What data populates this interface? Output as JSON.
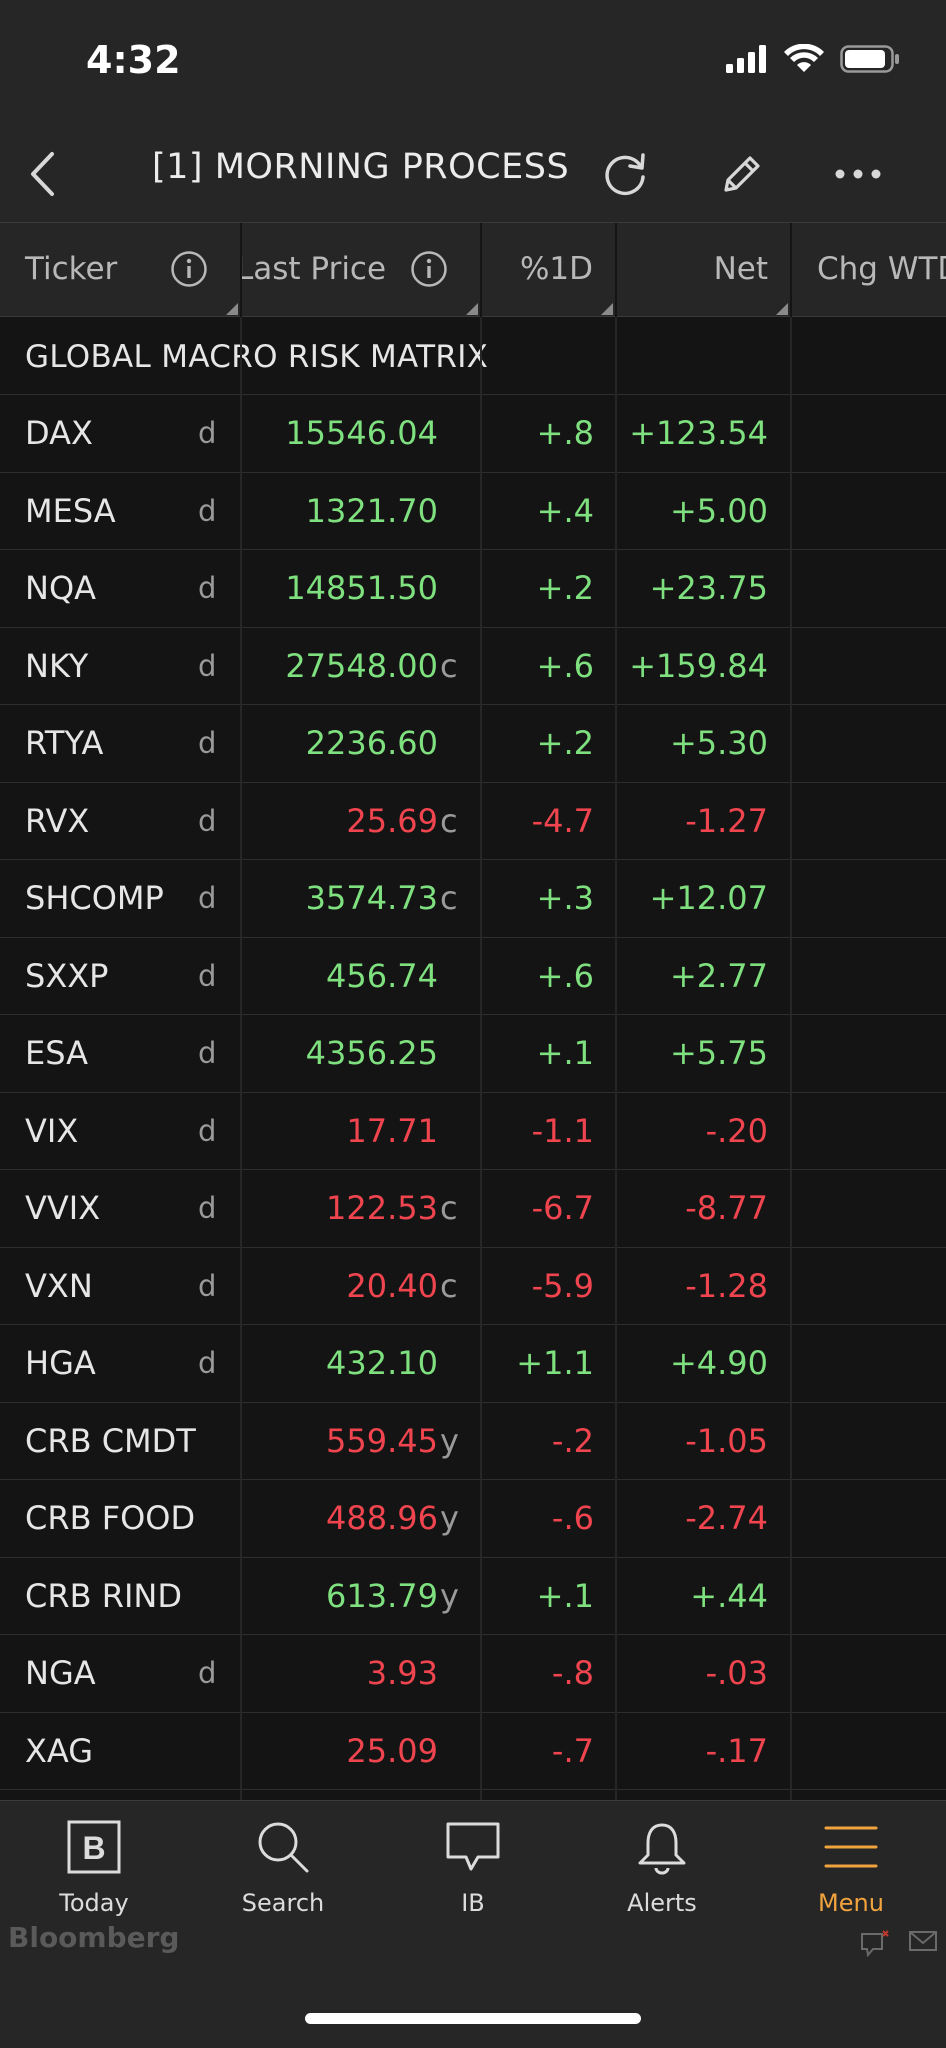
{
  "status_bar": {
    "time": "4:32"
  },
  "nav": {
    "title": "[1] MORNING PROCESS"
  },
  "columns": {
    "ticker": "Ticker",
    "last_price": "Last Price",
    "pct1d": "%1D",
    "net": "Net",
    "chg_wtd": "Chg WTD"
  },
  "section_title": "GLOBAL MACRO RISK MATRIX",
  "colors": {
    "up": "#7fe07f",
    "down": "#f0454f",
    "accent": "#f1a33d"
  },
  "rows": [
    {
      "ticker": "DAX",
      "src": "d",
      "last": "15546.04",
      "suffix": "",
      "pct": "+.8",
      "net": "+123.54",
      "dir": "up"
    },
    {
      "ticker": "MESA",
      "src": "d",
      "last": "1321.70",
      "suffix": "",
      "pct": "+.4",
      "net": "+5.00",
      "dir": "up"
    },
    {
      "ticker": "NQA",
      "src": "d",
      "last": "14851.50",
      "suffix": "",
      "pct": "+.2",
      "net": "+23.75",
      "dir": "up"
    },
    {
      "ticker": "NKY",
      "src": "d",
      "last": "27548.00",
      "suffix": "c",
      "pct": "+.6",
      "net": "+159.84",
      "dir": "up"
    },
    {
      "ticker": "RTYA",
      "src": "d",
      "last": "2236.60",
      "suffix": "",
      "pct": "+.2",
      "net": "+5.30",
      "dir": "up"
    },
    {
      "ticker": "RVX",
      "src": "d",
      "last": "25.69",
      "suffix": "c",
      "pct": "-4.7",
      "net": "-1.27",
      "dir": "down"
    },
    {
      "ticker": "SHCOMP",
      "src": "d",
      "last": "3574.73",
      "suffix": "c",
      "pct": "+.3",
      "net": "+12.07",
      "dir": "up"
    },
    {
      "ticker": "SXXP",
      "src": "d",
      "last": "456.74",
      "suffix": "",
      "pct": "+.6",
      "net": "+2.77",
      "dir": "up"
    },
    {
      "ticker": "ESA",
      "src": "d",
      "last": "4356.25",
      "suffix": "",
      "pct": "+.1",
      "net": "+5.75",
      "dir": "up"
    },
    {
      "ticker": "VIX",
      "src": "d",
      "last": "17.71",
      "suffix": "",
      "pct": "-1.1",
      "net": "-.20",
      "dir": "down"
    },
    {
      "ticker": "VVIX",
      "src": "d",
      "last": "122.53",
      "suffix": "c",
      "pct": "-6.7",
      "net": "-8.77",
      "dir": "down"
    },
    {
      "ticker": "VXN",
      "src": "d",
      "last": "20.40",
      "suffix": "c",
      "pct": "-5.9",
      "net": "-1.28",
      "dir": "down"
    },
    {
      "ticker": "HGA",
      "src": "d",
      "last": "432.10",
      "suffix": "",
      "pct": "+1.1",
      "net": "+4.90",
      "dir": "up"
    },
    {
      "ticker": "CRB CMDT",
      "src": "",
      "last": "559.45",
      "suffix": "y",
      "pct": "-.2",
      "net": "-1.05",
      "dir": "down"
    },
    {
      "ticker": "CRB FOOD",
      "src": "",
      "last": "488.96",
      "suffix": "y",
      "pct": "-.6",
      "net": "-2.74",
      "dir": "down"
    },
    {
      "ticker": "CRB RIND",
      "src": "",
      "last": "613.79",
      "suffix": "y",
      "pct": "+.1",
      "net": "+.44",
      "dir": "up"
    },
    {
      "ticker": "NGA",
      "src": "d",
      "last": "3.93",
      "suffix": "",
      "pct": "-.8",
      "net": "-.03",
      "dir": "down"
    },
    {
      "ticker": "XAG",
      "src": "",
      "last": "25.09",
      "suffix": "",
      "pct": "-.7",
      "net": "-.17",
      "dir": "down"
    }
  ],
  "tabs": [
    {
      "label": "Today",
      "icon": "bloomberg-b-icon"
    },
    {
      "label": "Search",
      "icon": "search-icon"
    },
    {
      "label": "IB",
      "icon": "chat-bubble-icon"
    },
    {
      "label": "Alerts",
      "icon": "bell-icon"
    },
    {
      "label": "Menu",
      "icon": "menu-icon"
    }
  ],
  "footer": {
    "brand": "Bloomberg"
  }
}
